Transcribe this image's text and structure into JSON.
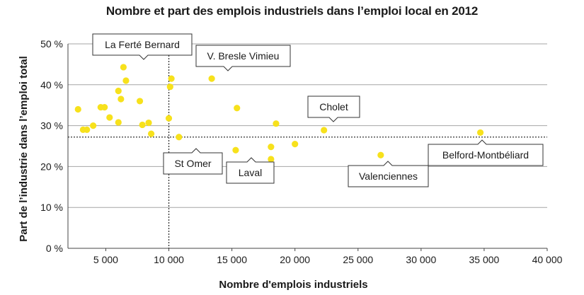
{
  "chart_data": {
    "type": "scatter",
    "title": "Nombre et part des emplois industriels dans l’emploi local en 2012",
    "xlabel": "Nombre d'emplois industriels",
    "ylabel": "Part de l’industrie dans l’emploi total",
    "xlim": [
      2000,
      40000
    ],
    "ylim": [
      0,
      50
    ],
    "x_ticks": [
      5000,
      10000,
      15000,
      20000,
      25000,
      30000,
      35000,
      40000
    ],
    "x_tick_labels": [
      "5 000",
      "10 000",
      "15 000",
      "20 000",
      "25 000",
      "30 000",
      "35 000",
      "40 000"
    ],
    "y_ticks": [
      0,
      10,
      20,
      30,
      40,
      50
    ],
    "y_tick_labels": [
      "0 %",
      "10 %",
      "20 %",
      "30 %",
      "40 %",
      "50 %"
    ],
    "grid": "horizontal",
    "point_color": "#f7e11c",
    "reference_lines": {
      "x": 10000,
      "y": 27.2
    },
    "points": [
      {
        "x": 2800,
        "y": 34
      },
      {
        "x": 3200,
        "y": 29
      },
      {
        "x": 3500,
        "y": 29
      },
      {
        "x": 4000,
        "y": 30
      },
      {
        "x": 4600,
        "y": 34.5
      },
      {
        "x": 4900,
        "y": 34.5
      },
      {
        "x": 5300,
        "y": 32
      },
      {
        "x": 6000,
        "y": 38.5
      },
      {
        "x": 6000,
        "y": 30.8
      },
      {
        "x": 6200,
        "y": 36.5
      },
      {
        "x": 6400,
        "y": 44.3
      },
      {
        "x": 6600,
        "y": 41
      },
      {
        "x": 7700,
        "y": 36
      },
      {
        "x": 7900,
        "y": 30.2
      },
      {
        "x": 8400,
        "y": 30.7
      },
      {
        "x": 8600,
        "y": 28
      },
      {
        "x": 10000,
        "y": 31.8
      },
      {
        "x": 10100,
        "y": 39.5
      },
      {
        "x": 10200,
        "y": 41.5
      },
      {
        "x": 10800,
        "y": 27.2
      },
      {
        "x": 13400,
        "y": 41.5
      },
      {
        "x": 15300,
        "y": 24
      },
      {
        "x": 15400,
        "y": 34.3
      },
      {
        "x": 18100,
        "y": 24.8
      },
      {
        "x": 18100,
        "y": 21.8
      },
      {
        "x": 18500,
        "y": 30.5
      },
      {
        "x": 20000,
        "y": 25.5
      },
      {
        "x": 22300,
        "y": 28.9
      },
      {
        "x": 26800,
        "y": 22.8
      },
      {
        "x": 34700,
        "y": 28.3
      }
    ],
    "annotations": [
      {
        "label": "La Ferté Bernard",
        "x": 6400,
        "y": 44.3
      },
      {
        "label": "V. Bresle Vimieu",
        "x": 13400,
        "y": 41.5
      },
      {
        "label": "Cholet",
        "x": 22300,
        "y": 28.9
      },
      {
        "label": "St Omer",
        "x": 10800,
        "y": 27.2
      },
      {
        "label": "Laval",
        "x": 15300,
        "y": 24
      },
      {
        "label": "Valenciennes",
        "x": 26800,
        "y": 22.8
      },
      {
        "label": "Belford-Montbéliard",
        "x": 34700,
        "y": 28.3
      }
    ]
  }
}
